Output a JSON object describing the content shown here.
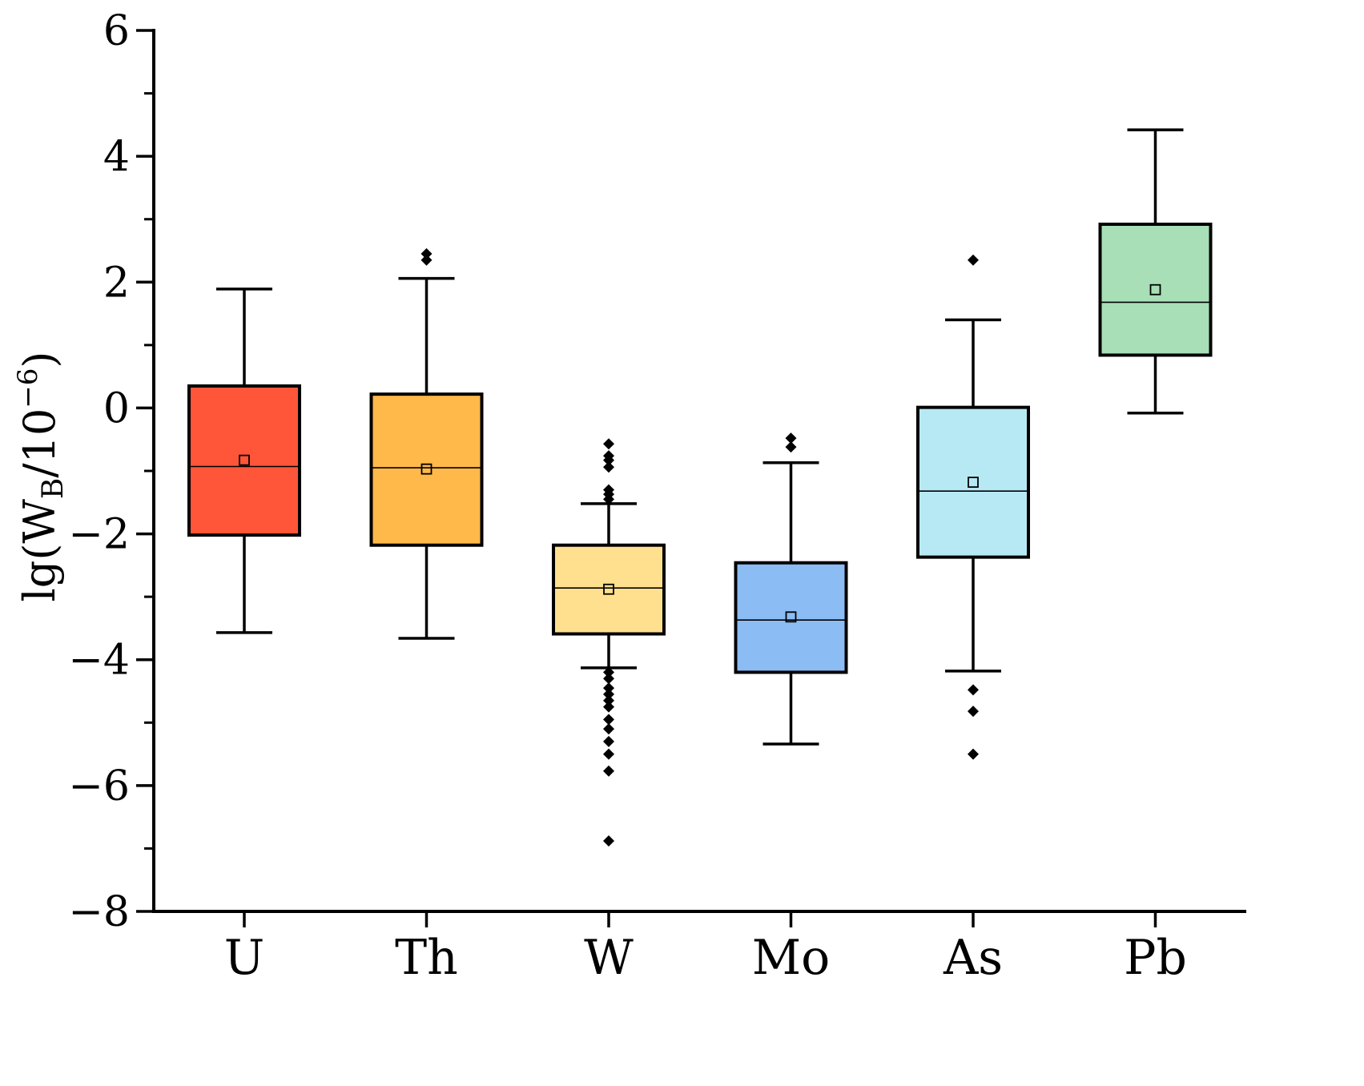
{
  "chart_data": {
    "type": "box",
    "title": "",
    "xlabel": "",
    "ylabel": {
      "prefix": "lg(W",
      "subscript": "B",
      "suffix": "/10",
      "superscript": "−6",
      "close": ")"
    },
    "ylim": [
      -8,
      6
    ],
    "yticks": [
      {
        "value": -8,
        "label": "−8"
      },
      {
        "value": -6,
        "label": "−6"
      },
      {
        "value": -4,
        "label": "−4"
      },
      {
        "value": -2,
        "label": "−2"
      },
      {
        "value": 0,
        "label": "0"
      },
      {
        "value": 2,
        "label": "2"
      },
      {
        "value": 4,
        "label": "4"
      },
      {
        "value": 6,
        "label": "6"
      }
    ],
    "yminor_step": 1,
    "categories": [
      "U",
      "Th",
      "W",
      "Mo",
      "As",
      "Pb"
    ],
    "series": [
      {
        "name": "U",
        "color": "#ff5539",
        "whisker_low": -3.57,
        "q1": -2.02,
        "median": -0.93,
        "q3": 0.35,
        "whisker_high": 1.89,
        "mean": -0.83,
        "outliers": []
      },
      {
        "name": "Th",
        "color": "#ffb94b",
        "whisker_low": -3.66,
        "q1": -2.18,
        "median": -0.95,
        "q3": 0.22,
        "whisker_high": 2.06,
        "mean": -0.97,
        "outliers": [
          2.35,
          2.45
        ]
      },
      {
        "name": "W",
        "color": "#ffe08f",
        "whisker_low": -4.13,
        "q1": -3.59,
        "median": -2.86,
        "q3": -2.18,
        "whisker_high": -1.52,
        "mean": -2.88,
        "outliers": [
          -0.57,
          -0.76,
          -0.83,
          -0.94,
          -1.3,
          -1.37,
          -1.45,
          -4.2,
          -4.3,
          -4.45,
          -4.55,
          -4.65,
          -4.75,
          -4.95,
          -5.1,
          -5.3,
          -5.5,
          -5.77,
          -6.88
        ]
      },
      {
        "name": "Mo",
        "color": "#8bbcf4",
        "whisker_low": -5.34,
        "q1": -4.2,
        "median": -3.37,
        "q3": -2.46,
        "whisker_high": -0.87,
        "mean": -3.32,
        "outliers": [
          -0.48,
          -0.62
        ]
      },
      {
        "name": "As",
        "color": "#b7e9f4",
        "whisker_low": -4.18,
        "q1": -2.37,
        "median": -1.32,
        "q3": 0.01,
        "whisker_high": 1.4,
        "mean": -1.18,
        "outliers": [
          2.35,
          -4.48,
          -4.82,
          -5.5
        ]
      },
      {
        "name": "Pb",
        "color": "#a8dfb6",
        "whisker_low": -0.08,
        "q1": 0.84,
        "median": 1.68,
        "q3": 2.92,
        "whisker_high": 4.42,
        "mean": 1.88,
        "outliers": []
      }
    ]
  }
}
